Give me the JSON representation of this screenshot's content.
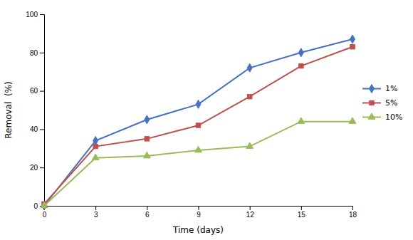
{
  "chart_data": {
    "type": "line",
    "xlabel": "Time (days)",
    "ylabel": "Removal  (%)",
    "x": [
      0,
      3,
      6,
      9,
      12,
      15,
      18
    ],
    "series": [
      {
        "name": "1%",
        "color": "#4472C4",
        "marker": "diamond",
        "values": [
          0,
          34,
          45,
          53,
          72,
          80,
          87
        ]
      },
      {
        "name": "5%",
        "color": "#C0504D",
        "marker": "square",
        "values": [
          1,
          31,
          35,
          42,
          57,
          73,
          83
        ]
      },
      {
        "name": "10%",
        "color": "#9BBB59",
        "marker": "triangle",
        "values": [
          0,
          25,
          26,
          29,
          31,
          44,
          44
        ]
      }
    ],
    "xlim": [
      0,
      18
    ],
    "ylim": [
      0,
      100
    ],
    "xticks": [
      0,
      3,
      6,
      9,
      12,
      15,
      18
    ],
    "yticks": [
      0,
      20,
      40,
      60,
      80,
      100
    ],
    "grid": false,
    "legend": "right"
  }
}
